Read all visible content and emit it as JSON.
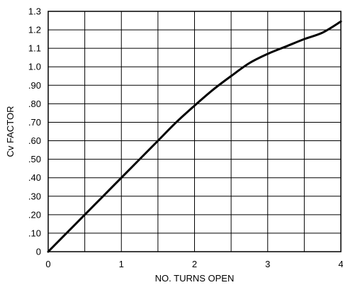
{
  "chart_data": {
    "type": "line",
    "xlabel": "NO. TURNS OPEN",
    "ylabel": "Cv FACTOR",
    "xlim": [
      0,
      4
    ],
    "ylim": [
      0,
      1.3
    ],
    "grid": true,
    "x_ticks": [
      {
        "value": 0,
        "label": "0"
      },
      {
        "value": 1,
        "label": "1"
      },
      {
        "value": 2,
        "label": "2"
      },
      {
        "value": 3,
        "label": "3"
      },
      {
        "value": 4,
        "label": "4"
      }
    ],
    "y_ticks": [
      {
        "value": 0,
        "label": "0"
      },
      {
        "value": 0.1,
        "label": ".10"
      },
      {
        "value": 0.2,
        "label": ".20"
      },
      {
        "value": 0.3,
        "label": ".30"
      },
      {
        "value": 0.4,
        "label": ".40"
      },
      {
        "value": 0.5,
        "label": ".50"
      },
      {
        "value": 0.6,
        "label": ".60"
      },
      {
        "value": 0.7,
        "label": ".70"
      },
      {
        "value": 0.8,
        "label": ".80"
      },
      {
        "value": 0.9,
        "label": ".90"
      },
      {
        "value": 1.0,
        "label": "1.0"
      },
      {
        "value": 1.1,
        "label": "1.1"
      },
      {
        "value": 1.2,
        "label": "1.2"
      },
      {
        "value": 1.3,
        "label": "1.3"
      }
    ],
    "x_gridlines": [
      0,
      0.5,
      1,
      1.5,
      2,
      2.5,
      3,
      3.5,
      4
    ],
    "series": [
      {
        "color": "#000000",
        "x": [
          0,
          0.25,
          0.5,
          0.75,
          1.0,
          1.25,
          1.5,
          1.75,
          2.0,
          2.25,
          2.5,
          2.75,
          3.0,
          3.25,
          3.5,
          3.75,
          4.0
        ],
        "y": [
          0,
          0.1,
          0.2,
          0.3,
          0.4,
          0.5,
          0.6,
          0.7,
          0.79,
          0.875,
          0.95,
          1.02,
          1.07,
          1.11,
          1.15,
          1.185,
          1.245
        ]
      }
    ]
  }
}
